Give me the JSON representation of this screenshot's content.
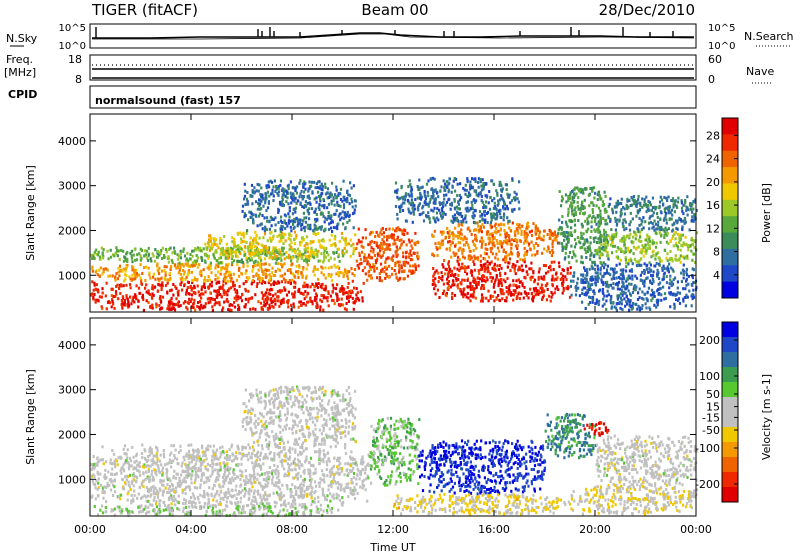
{
  "header": {
    "radar": "TIGER (fitACF)",
    "beam": "Beam 00",
    "date": "28/Dec/2010"
  },
  "top_panels": {
    "nsky_label": "N.Sky",
    "nsky_ticks": [
      "10^5",
      "10^0"
    ],
    "nsearch_label": "N.Search",
    "nsearch_ticks": [
      "10^5",
      "10^0"
    ],
    "freq_label": "Freq.",
    "freq_unit": "[MHz]",
    "freq_ticks": [
      "18",
      "8"
    ],
    "nave_label": "Nave",
    "nave_ticks": [
      "60",
      "0"
    ],
    "cpid_label": "CPID",
    "cpid_value": "normalsound (fast) 157"
  },
  "colors": {
    "power": [
      "#0000e0",
      "#1e48c8",
      "#2e6ea0",
      "#3c8c5a",
      "#58a83c",
      "#9cc828",
      "#f0c800",
      "#f49a00",
      "#f06400",
      "#f02800",
      "#e00000"
    ],
    "velocity": [
      "#e00000",
      "#f02800",
      "#f06400",
      "#f49a00",
      "#f0c800",
      "#c0c0c0",
      "#c0c0c0",
      "#58c830",
      "#3c9c50",
      "#2e6ea0",
      "#1e48c8",
      "#0000e0"
    ]
  },
  "chart_data": [
    {
      "type": "heatmap",
      "name": "power-panel",
      "ylabel": "Slant Range [km]",
      "ylim": [
        180,
        4600
      ],
      "yticks": [
        "1000",
        "2000",
        "3000",
        "4000"
      ],
      "ytick_values": [
        1000,
        2000,
        3000,
        4000
      ],
      "xlim": [
        0,
        24
      ],
      "colorbar_label": "Power [dB]",
      "colorbar_ticks": [
        "4",
        "8",
        "12",
        "16",
        "20",
        "24",
        "28"
      ],
      "colorbar_tick_values": [
        4,
        8,
        12,
        16,
        20,
        24,
        28
      ],
      "colorbar_range": [
        0,
        31
      ],
      "blobs": [
        {
          "t0": 0.0,
          "t1": 10.8,
          "r0": 250,
          "r1": 900,
          "v": 28
        },
        {
          "t0": 0.0,
          "t1": 10.5,
          "r0": 900,
          "r1": 1300,
          "v": 21
        },
        {
          "t0": 0.0,
          "t1": 10.0,
          "r0": 1300,
          "r1": 1650,
          "v": 13
        },
        {
          "t0": 4.5,
          "t1": 10.5,
          "r0": 1400,
          "r1": 2000,
          "v": 18
        },
        {
          "t0": 6.0,
          "t1": 10.5,
          "r0": 2000,
          "r1": 3150,
          "v": 7
        },
        {
          "t0": 10.5,
          "t1": 13.0,
          "r0": 900,
          "r1": 2100,
          "v": 25
        },
        {
          "t0": 13.5,
          "t1": 19.0,
          "r0": 450,
          "r1": 1350,
          "v": 28
        },
        {
          "t0": 13.5,
          "t1": 18.5,
          "r0": 1350,
          "r1": 2200,
          "v": 23
        },
        {
          "t0": 12.0,
          "t1": 17.0,
          "r0": 2200,
          "r1": 3200,
          "v": 7
        },
        {
          "t0": 18.5,
          "t1": 20.5,
          "r0": 1300,
          "r1": 3000,
          "v": 11
        },
        {
          "t0": 20.0,
          "t1": 24.0,
          "r0": 1300,
          "r1": 2000,
          "v": 15
        },
        {
          "t0": 19.0,
          "t1": 24.0,
          "r0": 250,
          "r1": 1300,
          "v": 6
        },
        {
          "t0": 20.5,
          "t1": 24.0,
          "r0": 2000,
          "r1": 2800,
          "v": 8
        }
      ]
    },
    {
      "type": "heatmap",
      "name": "velocity-panel",
      "ylabel": "Slant Range [km]",
      "xlabel": "Time UT",
      "ylim": [
        180,
        4600
      ],
      "yticks": [
        "1000",
        "2000",
        "3000",
        "4000"
      ],
      "ytick_values": [
        1000,
        2000,
        3000,
        4000
      ],
      "xlim": [
        0,
        24
      ],
      "xticks": [
        "00:00",
        "04:00",
        "08:00",
        "12:00",
        "16:00",
        "20:00",
        "00:00"
      ],
      "xtick_values": [
        0,
        4,
        8,
        12,
        16,
        20,
        24
      ],
      "colorbar_label": "Velocity [m s-1]",
      "colorbar_ticks": [
        "200",
        "100",
        "50",
        "15",
        "-15",
        "-50",
        "-100",
        "-200"
      ],
      "colorbar_tick_values": [
        200,
        100,
        50,
        15,
        -15,
        -50,
        -100,
        -200
      ],
      "colorbar_range": [
        -250,
        250
      ],
      "blobs": [
        {
          "t0": 0.0,
          "t1": 11.0,
          "r0": 400,
          "r1": 1800,
          "v": 0
        },
        {
          "t0": 0.0,
          "t1": 10.0,
          "r0": 220,
          "r1": 450,
          "v": 30
        },
        {
          "t0": 6.0,
          "t1": 10.5,
          "r0": 1800,
          "r1": 3100,
          "v": 0
        },
        {
          "t0": 11.0,
          "t1": 13.0,
          "r0": 900,
          "r1": 2400,
          "v": 60
        },
        {
          "t0": 13.0,
          "t1": 18.0,
          "r0": 700,
          "r1": 1900,
          "v": 210
        },
        {
          "t0": 12.0,
          "t1": 19.0,
          "r0": 250,
          "r1": 700,
          "v": -40
        },
        {
          "t0": 18.0,
          "t1": 20.0,
          "r0": 1500,
          "r1": 2500,
          "v": 120
        },
        {
          "t0": 19.5,
          "t1": 20.5,
          "r0": 2000,
          "r1": 2300,
          "v": -220
        },
        {
          "t0": 20.0,
          "t1": 24.0,
          "r0": 900,
          "r1": 2000,
          "v": 0
        },
        {
          "t0": 19.0,
          "t1": 24.0,
          "r0": 250,
          "r1": 900,
          "v": -30
        }
      ]
    }
  ]
}
